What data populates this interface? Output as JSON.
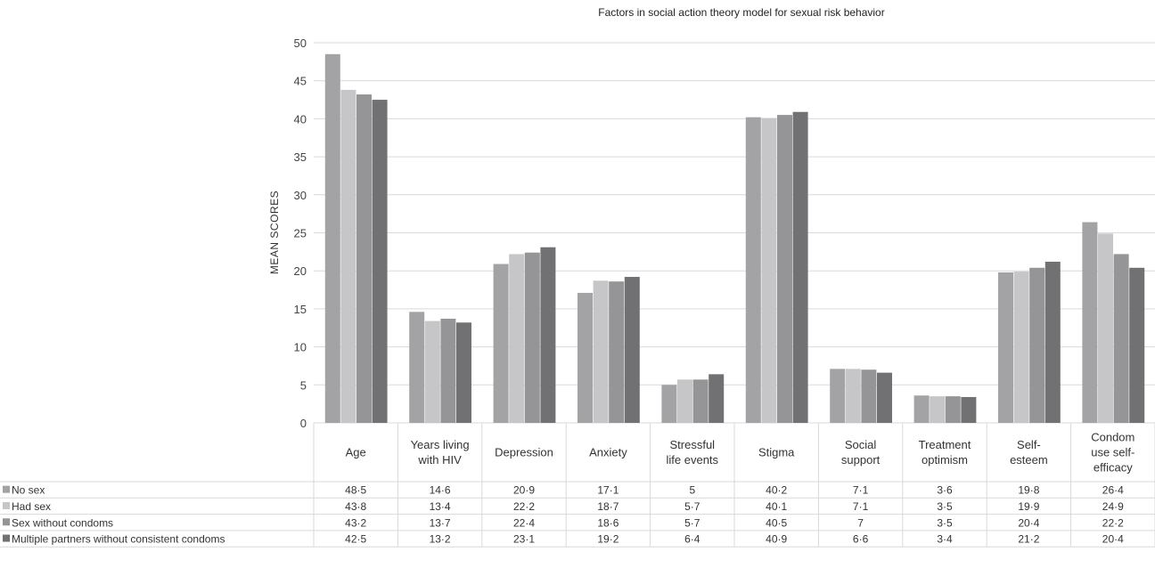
{
  "chart_data": {
    "type": "bar",
    "title": "Factors in social action theory model for sexual risk behavior",
    "ylabel": "MEAN SCORES",
    "xlabel": "",
    "ylim": [
      0,
      50
    ],
    "yticks": [
      0,
      5,
      10,
      15,
      20,
      25,
      30,
      35,
      40,
      45,
      50
    ],
    "grid": true,
    "legend_placement": "bottom-left data table",
    "categories": [
      [
        "Age"
      ],
      [
        "Years living",
        "with HIV"
      ],
      [
        "Depression"
      ],
      [
        "Anxiety"
      ],
      [
        "Stressful",
        "life events"
      ],
      [
        "Stigma"
      ],
      [
        "Social",
        "support"
      ],
      [
        "Treatment",
        "optimism"
      ],
      [
        "Self-",
        "esteem"
      ],
      [
        "Condom",
        "use self-",
        "efficacy"
      ]
    ],
    "series": [
      {
        "name": "No sex",
        "color": "#a3a3a5",
        "values": [
          48.5,
          14.6,
          20.9,
          17.1,
          5,
          40.2,
          7.1,
          3.6,
          19.8,
          26.4
        ],
        "labels": [
          "48·5",
          "14·6",
          "20·9",
          "17·1",
          "5",
          "40·2",
          "7·1",
          "3·6",
          "19·8",
          "26·4"
        ]
      },
      {
        "name": "Had sex",
        "color": "#c6c6c8",
        "values": [
          43.8,
          13.4,
          22.2,
          18.7,
          5.7,
          40.1,
          7.1,
          3.5,
          19.9,
          24.9
        ],
        "labels": [
          "43·8",
          "13·4",
          "22·2",
          "18·7",
          "5·7",
          "40·1",
          "7·1",
          "3·5",
          "19·9",
          "24·9"
        ]
      },
      {
        "name": "Sex without condoms",
        "color": "#959597",
        "values": [
          43.2,
          13.7,
          22.4,
          18.6,
          5.7,
          40.5,
          7,
          3.5,
          20.4,
          22.2
        ],
        "labels": [
          "43·2",
          "13·7",
          "22·4",
          "18·6",
          "5·7",
          "40·5",
          "7",
          "3·5",
          "20·4",
          "22·2"
        ]
      },
      {
        "name": "Multiple partners without consistent condoms",
        "color": "#717174",
        "values": [
          42.5,
          13.2,
          23.1,
          19.2,
          6.4,
          40.9,
          6.6,
          3.4,
          21.2,
          20.4
        ],
        "labels": [
          "42·5",
          "13·2",
          "23·1",
          "19·2",
          "6·4",
          "40·9",
          "6·6",
          "3·4",
          "21·2",
          "20·4"
        ]
      }
    ]
  }
}
